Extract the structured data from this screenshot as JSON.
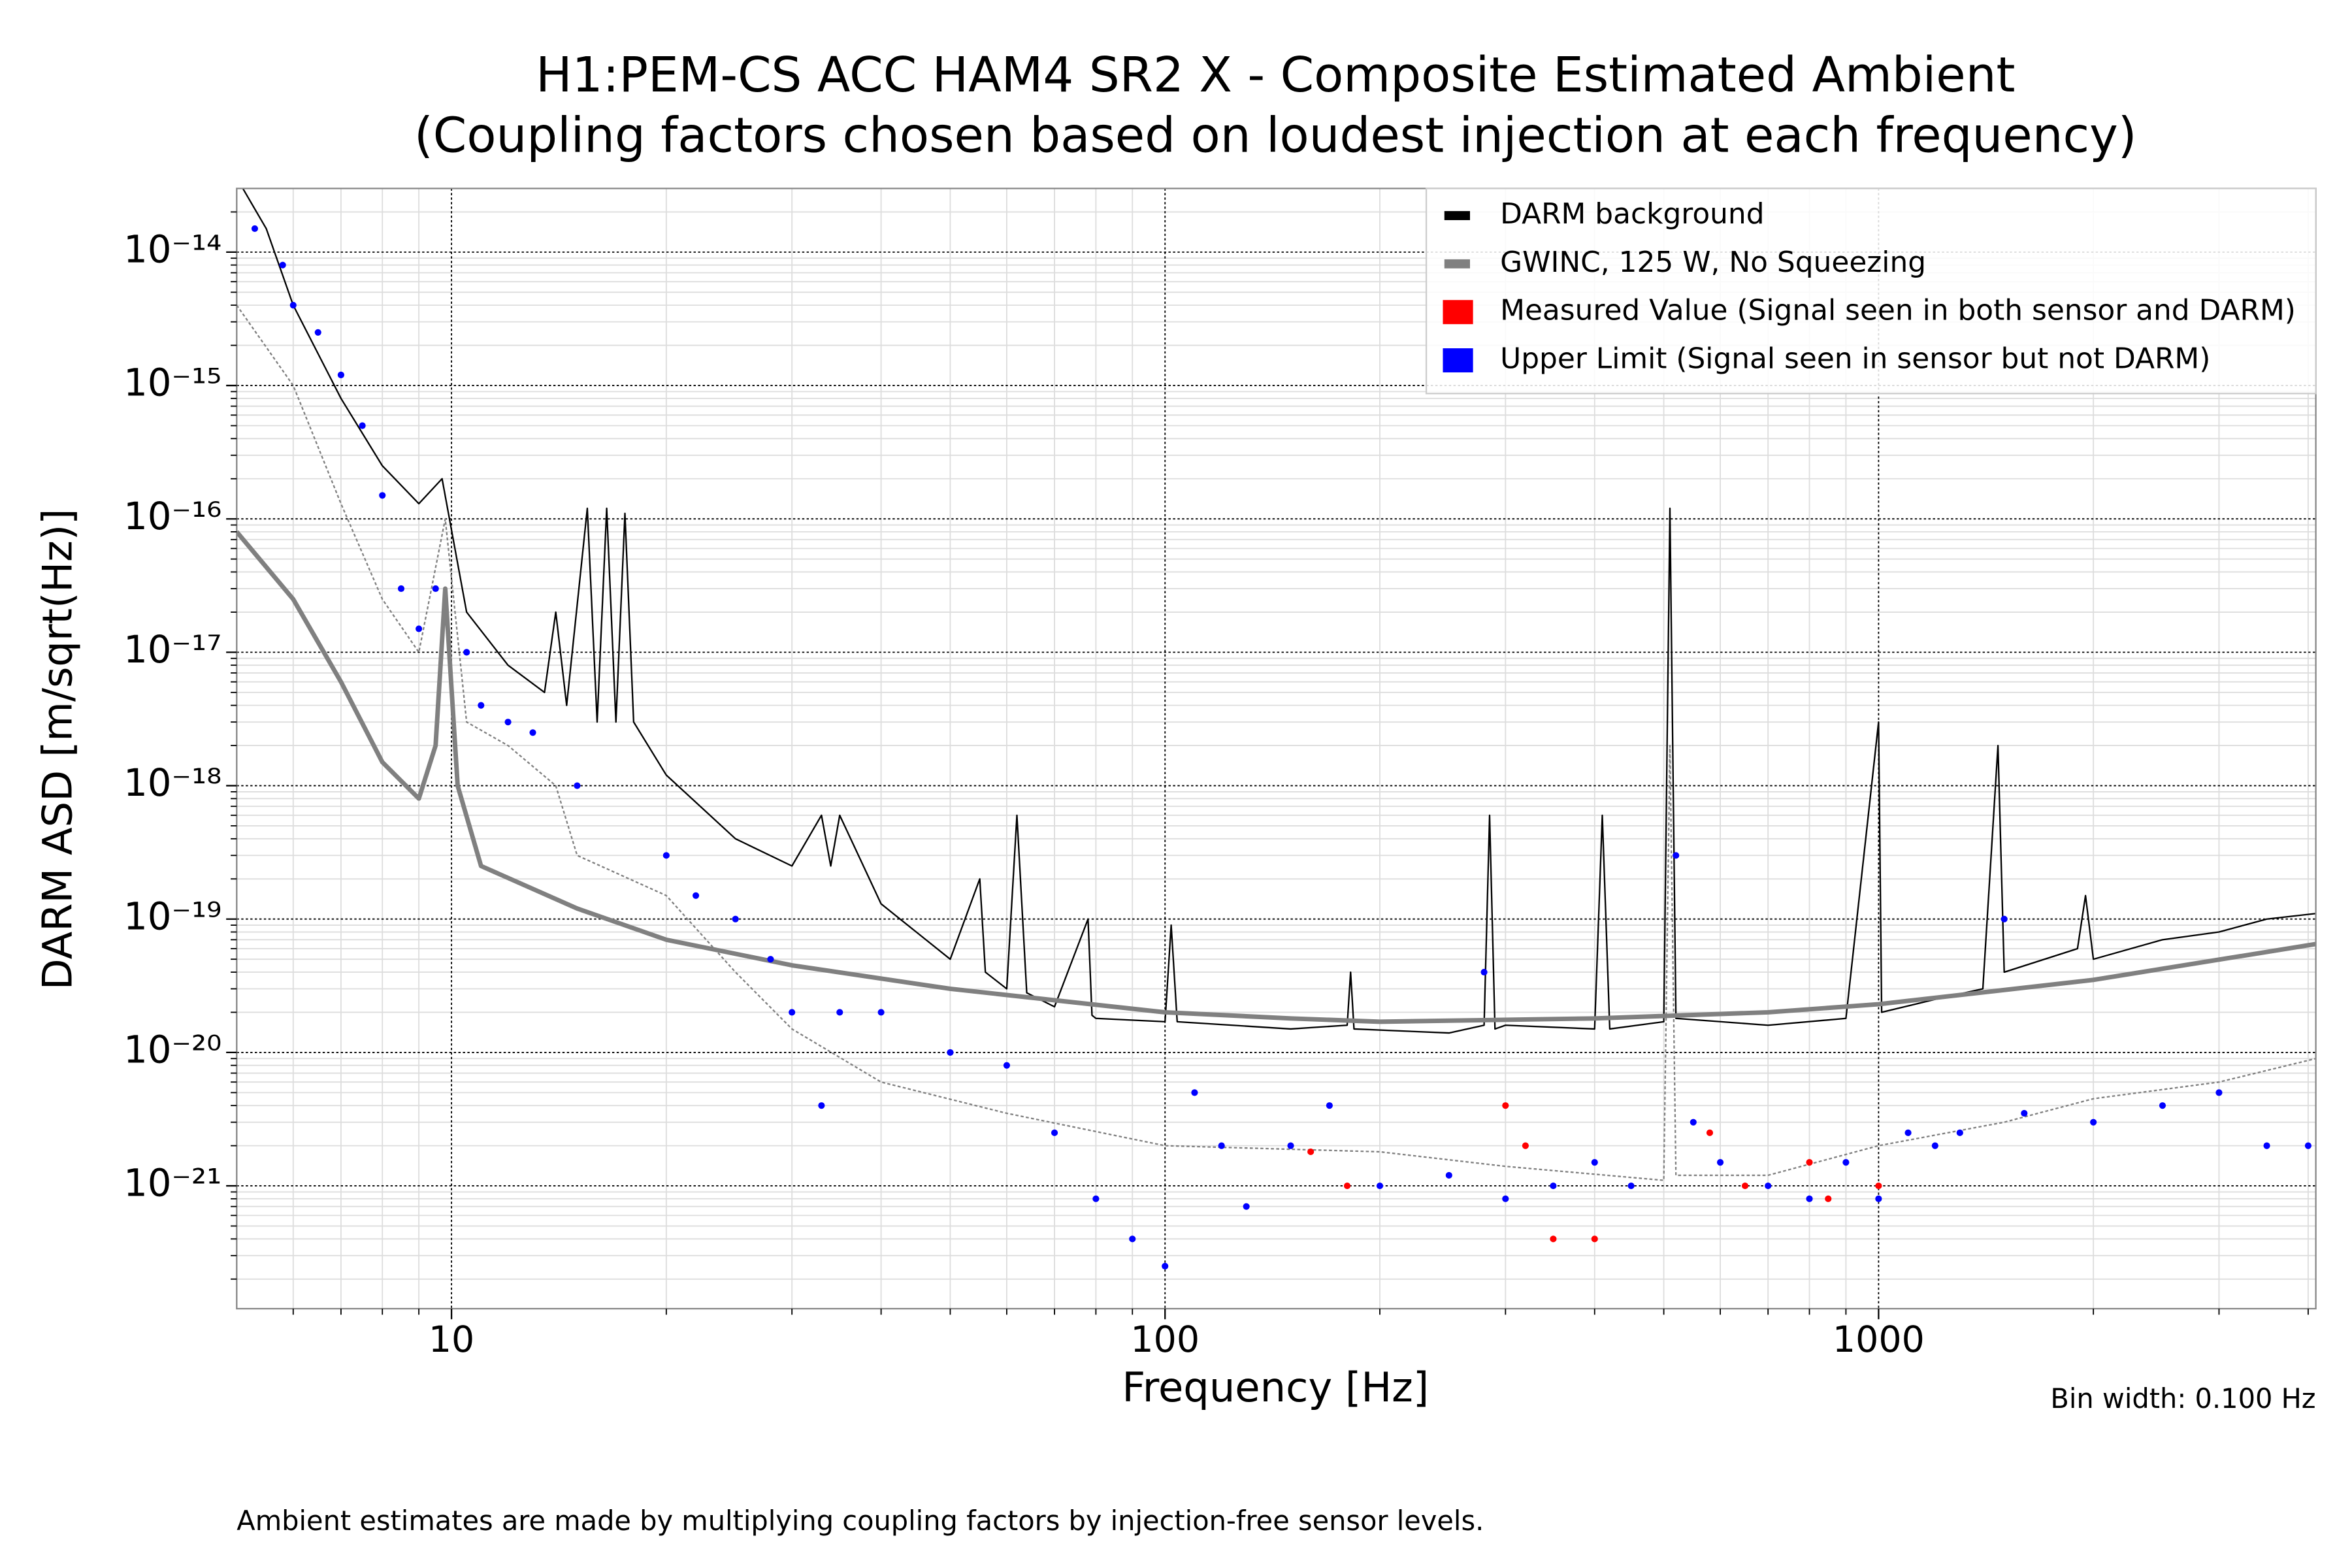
{
  "chart_data": {
    "type": "line",
    "title": "H1:PEM-CS ACC HAM4 SR2 X - Composite Estimated Ambient",
    "subtitle": "(Coupling factors chosen based on loudest injection at each frequency)",
    "x_label": "Frequency [Hz]",
    "y_label": "DARM ASD [m/sqrt(Hz)]",
    "annotation": "Bin width: 0.100 Hz",
    "footnote": "Ambient estimates are made by multiplying coupling factors by injection-free sensor levels.",
    "xscale": "log",
    "yscale": "log",
    "grid": true,
    "legend": "upper right",
    "xlim": [
      5,
      4100
    ],
    "ylim": [
      1.2e-22,
      3e-14
    ],
    "xticks": [
      10,
      100,
      1000
    ],
    "xminorticks": [
      6,
      7,
      8,
      9,
      20,
      30,
      40,
      50,
      60,
      70,
      80,
      90,
      200,
      300,
      400,
      500,
      600,
      700,
      800,
      900,
      2000,
      3000,
      4000
    ],
    "yticks": [
      {
        "value": 1e-21,
        "label": "10⁻²¹"
      },
      {
        "value": 1e-20,
        "label": "10⁻²⁰"
      },
      {
        "value": 1e-19,
        "label": "10⁻¹⁹"
      },
      {
        "value": 1e-18,
        "label": "10⁻¹⁸"
      },
      {
        "value": 1e-17,
        "label": "10⁻¹⁷"
      },
      {
        "value": 1e-16,
        "label": "10⁻¹⁶"
      },
      {
        "value": 1e-15,
        "label": "10⁻¹⁵"
      },
      {
        "value": 1e-14,
        "label": "10⁻¹⁴"
      }
    ],
    "yminorticks": [
      2e-22,
      3e-22,
      4e-22,
      5e-22,
      6e-22,
      7e-22,
      8e-22,
      9e-22,
      2e-21,
      3e-21,
      4e-21,
      5e-21,
      6e-21,
      7e-21,
      8e-21,
      9e-21,
      2e-20,
      3e-20,
      4e-20,
      5e-20,
      6e-20,
      7e-20,
      8e-20,
      9e-20,
      2e-19,
      3e-19,
      4e-19,
      5e-19,
      6e-19,
      7e-19,
      8e-19,
      9e-19,
      2e-18,
      3e-18,
      4e-18,
      5e-18,
      6e-18,
      7e-18,
      8e-18,
      9e-18,
      2e-17,
      3e-17,
      4e-17,
      5e-17,
      6e-17,
      7e-17,
      8e-17,
      9e-17,
      2e-16,
      3e-16,
      4e-16,
      5e-16,
      6e-16,
      7e-16,
      8e-16,
      9e-16,
      2e-15,
      3e-15,
      4e-15,
      5e-15,
      6e-15,
      7e-15,
      8e-15,
      9e-15,
      2e-14
    ],
    "series": [
      {
        "mark": "dotted-line",
        "color": "#808080",
        "x": [
          5,
          6,
          7,
          8,
          9,
          9.8,
          10.5,
          12,
          14,
          15,
          20,
          25,
          30,
          40,
          60,
          100,
          200,
          300,
          500,
          510,
          520,
          700,
          1000,
          1500,
          2000,
          3000,
          4100
        ],
        "values": [
          4e-15,
          1e-15,
          1.3e-16,
          2.5e-17,
          1e-17,
          1e-16,
          3e-18,
          2e-18,
          1e-18,
          3e-19,
          1.5e-19,
          4e-20,
          1.5e-20,
          6e-21,
          3.5e-21,
          2e-21,
          1.8e-21,
          1.4e-21,
          1.1e-21,
          2e-18,
          1.2e-21,
          1.2e-21,
          2e-21,
          3e-21,
          4.5e-21,
          6e-21,
          9e-21
        ]
      },
      {
        "name": "DARM background",
        "mark": "line",
        "color": "#000000",
        "x": [
          5.1,
          5.5,
          6,
          7,
          8,
          9,
          9.7,
          10.5,
          12,
          13.5,
          14,
          14.5,
          15.5,
          16,
          16.5,
          17,
          17.5,
          18,
          20,
          25,
          30,
          33,
          34,
          35,
          40,
          50,
          55,
          56,
          60,
          62,
          64,
          70,
          78,
          79,
          80,
          100,
          102,
          104,
          150,
          180,
          182,
          184,
          250,
          280,
          285,
          290,
          300,
          400,
          410,
          420,
          500,
          510,
          520,
          700,
          900,
          1000,
          1010,
          1200,
          1400,
          1470,
          1500,
          1900,
          1950,
          2000,
          2500,
          3000,
          3500,
          4100
        ],
        "values": [
          3e-14,
          1.5e-14,
          4e-15,
          8e-16,
          2.5e-16,
          1.3e-16,
          2e-16,
          2e-17,
          8e-18,
          5e-18,
          2e-17,
          4e-18,
          1.2e-16,
          3e-18,
          1.2e-16,
          3e-18,
          1.1e-16,
          3e-18,
          1.2e-18,
          4e-19,
          2.5e-19,
          6e-19,
          2.5e-19,
          6e-19,
          1.3e-19,
          5e-20,
          2e-19,
          4e-20,
          3e-20,
          6e-19,
          2.8e-20,
          2.2e-20,
          1e-19,
          1.9e-20,
          1.8e-20,
          1.7e-20,
          9e-20,
          1.7e-20,
          1.5e-20,
          1.6e-20,
          4e-20,
          1.5e-20,
          1.4e-20,
          1.6e-20,
          6e-19,
          1.5e-20,
          1.6e-20,
          1.5e-20,
          6e-19,
          1.5e-20,
          1.7e-20,
          1.2e-16,
          1.8e-20,
          1.6e-20,
          1.8e-20,
          3e-18,
          2e-20,
          2.5e-20,
          3e-20,
          2e-18,
          4e-20,
          6e-20,
          1.5e-19,
          5e-20,
          7e-20,
          8e-20,
          1e-19,
          1.1e-19
        ]
      },
      {
        "name": "GWINC, 125 W, No Squeezing",
        "mark": "line",
        "width": 3,
        "color": "#808080",
        "x": [
          5,
          6,
          7,
          8,
          9,
          9.5,
          9.8,
          10.2,
          11,
          15,
          20,
          30,
          50,
          100,
          150,
          200,
          400,
          700,
          1000,
          2000,
          4100
        ],
        "values": [
          8e-17,
          2.5e-17,
          6e-18,
          1.5e-18,
          8e-19,
          2e-18,
          3e-17,
          1e-18,
          2.5e-19,
          1.2e-19,
          7e-20,
          4.5e-20,
          3e-20,
          2e-20,
          1.8e-20,
          1.7e-20,
          1.8e-20,
          2e-20,
          2.3e-20,
          3.5e-20,
          6.5e-20
        ]
      },
      {
        "name": "Measured Value (Signal seen in both sensor and DARM)",
        "mark": "dots",
        "color": "#ff0000",
        "x": [
          160,
          180,
          300,
          320,
          350,
          400,
          580,
          650,
          800,
          850,
          1000
        ],
        "values": [
          1.8e-21,
          1e-21,
          4e-21,
          2e-21,
          4e-22,
          4e-22,
          2.5e-21,
          1e-21,
          1.5e-21,
          8e-22,
          1e-21
        ]
      },
      {
        "name": "Upper Limit (Signal seen in sensor but not DARM)",
        "mark": "dots",
        "color": "#0000ff",
        "x": [
          5.3,
          5.8,
          6,
          6.5,
          7,
          7.5,
          8,
          8.5,
          9,
          9.5,
          10.5,
          11,
          12,
          13,
          15,
          20,
          22,
          25,
          28,
          30,
          33,
          35,
          40,
          50,
          60,
          70,
          80,
          90,
          100,
          110,
          120,
          130,
          150,
          170,
          200,
          250,
          280,
          300,
          350,
          400,
          450,
          520,
          550,
          600,
          700,
          800,
          900,
          1000,
          1100,
          1200,
          1300,
          1500,
          1600,
          2000,
          2500,
          3000,
          3500,
          4000
        ],
        "values": [
          1.5e-14,
          8e-15,
          4e-15,
          2.5e-15,
          1.2e-15,
          5e-16,
          1.5e-16,
          3e-17,
          1.5e-17,
          3e-17,
          1e-17,
          4e-18,
          3e-18,
          2.5e-18,
          1e-18,
          3e-19,
          1.5e-19,
          1e-19,
          5e-20,
          2e-20,
          4e-21,
          2e-20,
          2e-20,
          1e-20,
          8e-21,
          2.5e-21,
          8e-22,
          4e-22,
          2.5e-22,
          5e-21,
          2e-21,
          7e-22,
          2e-21,
          4e-21,
          1e-21,
          1.2e-21,
          4e-20,
          8e-22,
          1e-21,
          1.5e-21,
          1e-21,
          3e-19,
          3e-21,
          1.5e-21,
          1e-21,
          8e-22,
          1.5e-21,
          8e-22,
          2.5e-21,
          2e-21,
          2.5e-21,
          1e-19,
          3.5e-21,
          3e-21,
          4e-21,
          5e-21,
          2e-21,
          2e-21
        ]
      }
    ]
  }
}
